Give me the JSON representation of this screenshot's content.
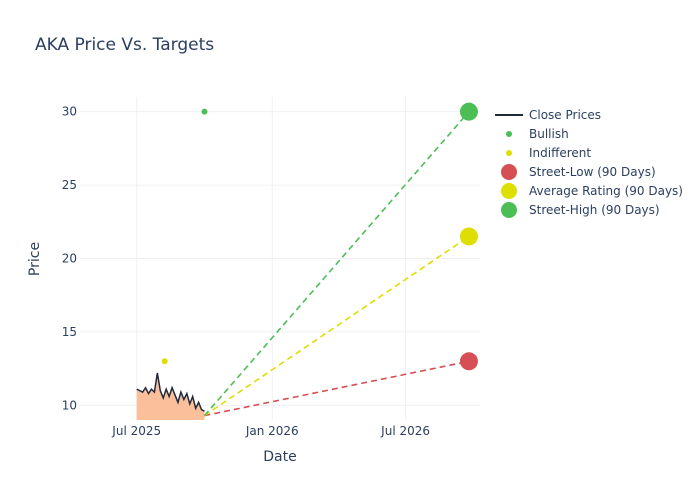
{
  "chart_data": {
    "type": "line",
    "title": "AKA Price Vs. Targets",
    "xlabel": "Date",
    "ylabel": "Price",
    "x_ticks": [
      "Jul 2025",
      "Jan 2026",
      "Jul 2026"
    ],
    "y_ticks": [
      10,
      15,
      20,
      25,
      30
    ],
    "ylim": [
      9,
      31
    ],
    "xlim": [
      "2025-04-15",
      "2026-10-10"
    ],
    "grid": true,
    "legend_position": "right",
    "close_prices": {
      "name": "Close Prices",
      "color": "#1f2a3a",
      "fill_color": "#fbbf9c",
      "x": [
        "2025-07-01",
        "2025-07-05",
        "2025-07-09",
        "2025-07-13",
        "2025-07-17",
        "2025-07-21",
        "2025-07-25",
        "2025-07-29",
        "2025-08-02",
        "2025-08-06",
        "2025-08-10",
        "2025-08-14",
        "2025-08-18",
        "2025-08-22",
        "2025-08-26",
        "2025-08-30",
        "2025-09-03",
        "2025-09-07",
        "2025-09-11",
        "2025-09-15",
        "2025-09-19",
        "2025-09-23",
        "2025-09-27",
        "2025-10-01"
      ],
      "y": [
        11.1,
        11.0,
        10.9,
        11.2,
        10.8,
        11.1,
        10.9,
        12.2,
        11.0,
        10.5,
        11.1,
        10.6,
        11.2,
        10.7,
        10.2,
        10.9,
        10.4,
        10.8,
        10.1,
        10.6,
        9.8,
        10.2,
        9.7,
        9.6
      ]
    },
    "series": [
      {
        "name": "Bullish",
        "color": "#4cbe56",
        "points": [
          {
            "x": "2025-10-01",
            "y": 30
          }
        ]
      },
      {
        "name": "Indifferent",
        "color": "#dede00",
        "points": [
          {
            "x": "2025-08-08",
            "y": 13
          }
        ]
      }
    ],
    "targets": [
      {
        "name": "Street-Low (90 Days)",
        "color": "#d64f55",
        "x": "2026-09-25",
        "y": 13
      },
      {
        "name": "Average Rating (90 Days)",
        "color": "#dede00",
        "x": "2026-09-25",
        "y": 21.5
      },
      {
        "name": "Street-High (90 Days)",
        "color": "#4cbe56",
        "x": "2026-09-25",
        "y": 30
      }
    ],
    "target_origin": {
      "x": "2025-10-01",
      "y": 9.3
    }
  }
}
